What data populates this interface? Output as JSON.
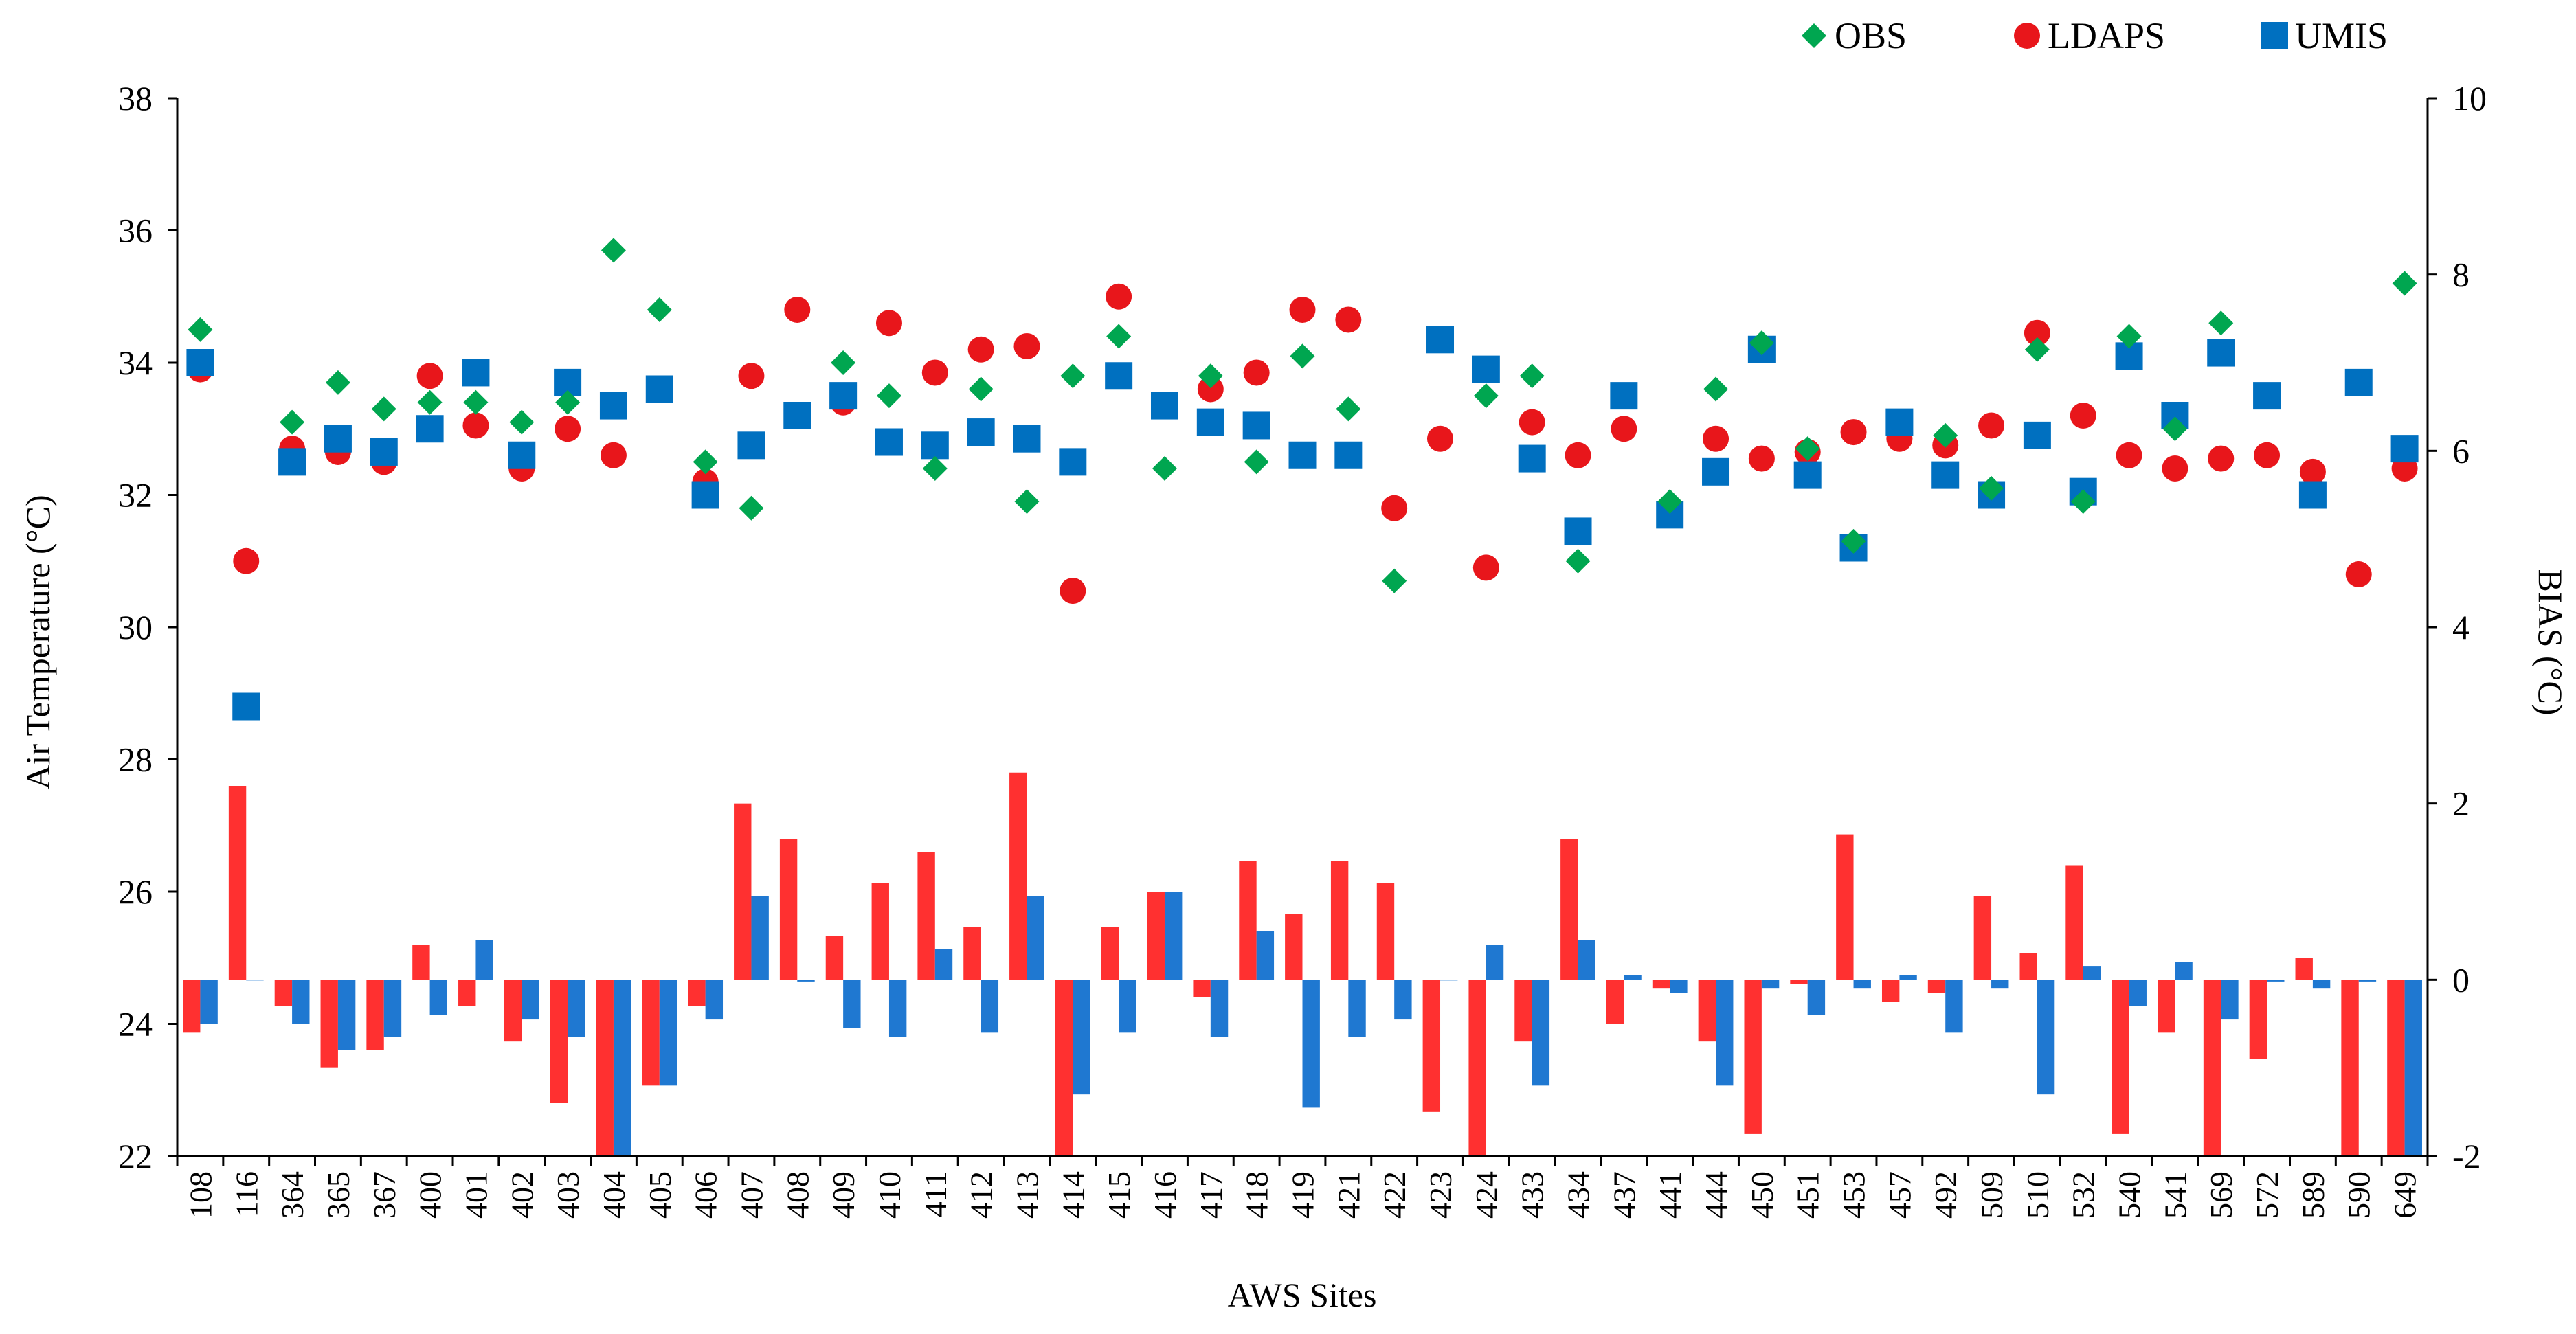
{
  "chart_data": {
    "type": "combo",
    "xlabel": "AWS Sites",
    "ylabel_left": "Air Temperature (°C)",
    "ylabel_right": "BIAS (°C)",
    "ylim_left": [
      22,
      38
    ],
    "yticks_left": [
      "22",
      "24",
      "26",
      "28",
      "30",
      "32",
      "34",
      "36",
      "38"
    ],
    "ylim_right": [
      -2,
      10
    ],
    "yticks_right": [
      "-2",
      "0",
      "2",
      "4",
      "6",
      "8",
      "10"
    ],
    "grid": false,
    "legend_position": "top-right",
    "categories": [
      "108",
      "116",
      "364",
      "365",
      "367",
      "400",
      "401",
      "402",
      "403",
      "404",
      "405",
      "406",
      "407",
      "408",
      "409",
      "410",
      "411",
      "412",
      "413",
      "414",
      "415",
      "416",
      "417",
      "418",
      "419",
      "421",
      "422",
      "423",
      "424",
      "433",
      "434",
      "437",
      "441",
      "444",
      "450",
      "451",
      "453",
      "457",
      "492",
      "509",
      "510",
      "532",
      "540",
      "541",
      "569",
      "572",
      "589",
      "590",
      "649"
    ],
    "scatter_series": [
      {
        "name": "OBS",
        "marker": "diamond",
        "color": "#00a650",
        "values": [
          34.5,
          null,
          33.1,
          33.7,
          33.3,
          33.4,
          33.4,
          33.1,
          33.4,
          35.7,
          34.8,
          32.5,
          31.8,
          null,
          34.0,
          33.5,
          32.4,
          33.6,
          31.9,
          33.8,
          34.4,
          32.4,
          33.8,
          32.5,
          34.1,
          33.3,
          30.7,
          null,
          33.5,
          33.8,
          31.0,
          null,
          31.9,
          33.6,
          34.3,
          32.7,
          31.3,
          null,
          32.9,
          32.1,
          34.2,
          31.9,
          34.4,
          33.0,
          34.6,
          null,
          null,
          null,
          35.2
        ]
      },
      {
        "name": "LDAPS",
        "marker": "circle",
        "color": "#e8161b",
        "values": [
          33.9,
          31.0,
          32.7,
          32.65,
          32.5,
          33.8,
          33.05,
          32.4,
          33.0,
          32.6,
          null,
          32.2,
          33.8,
          34.8,
          33.4,
          34.6,
          33.85,
          34.2,
          34.25,
          30.55,
          35.0,
          null,
          33.6,
          33.85,
          34.8,
          34.65,
          31.8,
          32.85,
          30.9,
          33.1,
          32.6,
          33.0,
          null,
          32.85,
          32.55,
          32.65,
          32.95,
          32.85,
          32.75,
          33.05,
          34.45,
          33.2,
          32.6,
          32.4,
          32.55,
          32.6,
          32.35,
          30.8,
          32.4
        ]
      },
      {
        "name": "UMIS",
        "marker": "square",
        "color": "#0070c0",
        "values": [
          34.0,
          28.8,
          32.5,
          32.85,
          32.65,
          33.0,
          33.85,
          32.6,
          33.7,
          33.35,
          33.6,
          32.0,
          32.75,
          33.2,
          33.5,
          32.8,
          32.75,
          32.95,
          32.85,
          32.5,
          33.8,
          33.35,
          33.1,
          33.05,
          32.6,
          32.6,
          null,
          34.35,
          33.9,
          32.55,
          31.45,
          33.5,
          31.7,
          32.35,
          34.2,
          32.3,
          31.2,
          33.1,
          32.3,
          32.0,
          32.9,
          32.05,
          34.1,
          33.2,
          34.15,
          33.5,
          32.0,
          33.7,
          32.7
        ]
      }
    ],
    "bar_series": [
      {
        "name": "LDAPS BIAS",
        "color": "#ff3030",
        "values": [
          -0.6,
          2.2,
          -0.3,
          -1.0,
          -0.8,
          0.4,
          -0.3,
          -0.7,
          -1.4,
          -2.0,
          -1.2,
          -0.3,
          2.0,
          1.6,
          0.5,
          1.1,
          1.45,
          0.6,
          2.35,
          -2.0,
          0.6,
          1.0,
          -0.2,
          1.35,
          0.75,
          1.35,
          1.1,
          -1.5,
          -2.0,
          -0.7,
          1.6,
          -0.5,
          -0.1,
          -0.7,
          -1.75,
          -0.05,
          1.65,
          -0.25,
          -0.15,
          0.95,
          0.3,
          1.3,
          -1.75,
          -0.6,
          -2.0,
          -0.9,
          0.25,
          -2.0,
          -2.0
        ]
      },
      {
        "name": "UMIS BIAS",
        "color": "#1f78d1",
        "values": [
          -0.5,
          0.0,
          -0.5,
          -0.8,
          -0.65,
          -0.4,
          0.45,
          -0.45,
          -0.65,
          -2.0,
          -1.2,
          -0.45,
          0.95,
          -0.02,
          -0.55,
          -0.65,
          0.35,
          -0.6,
          0.95,
          -1.3,
          -0.6,
          1.0,
          -0.65,
          0.55,
          -1.45,
          -0.65,
          -0.45,
          0.0,
          0.4,
          -1.2,
          0.45,
          0.05,
          -0.15,
          -1.2,
          -0.1,
          -0.4,
          -0.1,
          0.05,
          -0.6,
          -0.1,
          -1.3,
          0.15,
          -0.3,
          0.2,
          -0.45,
          -0.02,
          -0.1,
          -0.02,
          -2.0
        ]
      }
    ],
    "legend": [
      {
        "label": "OBS",
        "marker": "diamond",
        "color": "#00a650"
      },
      {
        "label": "LDAPS",
        "marker": "circle",
        "color": "#e8161b"
      },
      {
        "label": "UMIS",
        "marker": "square",
        "color": "#0070c0"
      }
    ]
  }
}
